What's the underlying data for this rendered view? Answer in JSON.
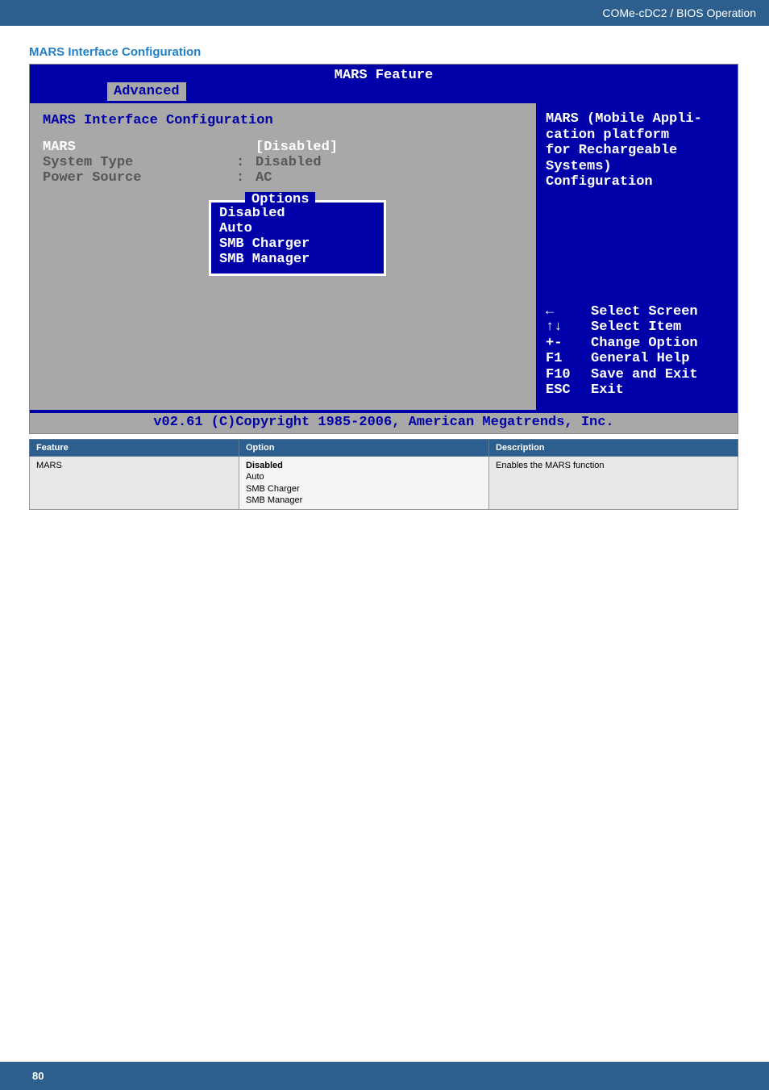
{
  "breadcrumb": "COMe-cDC2 / BIOS Operation",
  "section_title": "MARS Interface Configuration",
  "bios": {
    "title": "MARS Feature",
    "tab": "Advanced",
    "left_heading": "MARS Interface Configuration",
    "rows": [
      {
        "label": "MARS",
        "colon": "",
        "value": "[Disabled]",
        "selected": true
      },
      {
        "label": "System Type",
        "colon": ":",
        "value": "Disabled",
        "selected": false
      },
      {
        "label": "Power Source",
        "colon": ":",
        "value": "AC",
        "selected": false
      }
    ],
    "options_box": {
      "title": "Options",
      "items": [
        "Disabled",
        "Auto",
        "SMB Charger",
        "SMB Manager"
      ]
    },
    "help_top_lines": [
      "MARS (Mobile Appli-",
      "cation platform",
      "for Rechargeable",
      "Systems)",
      "Configuration"
    ],
    "help_keys": [
      {
        "k": "←",
        "t": "Select Screen"
      },
      {
        "k": "↑↓",
        "t": "Select Item"
      },
      {
        "k": "+-",
        "t": "Change Option"
      },
      {
        "k": "F1",
        "t": "General Help"
      },
      {
        "k": "F10",
        "t": "Save and Exit"
      },
      {
        "k": "ESC",
        "t": "Exit"
      }
    ],
    "copyright": "v02.61 (C)Copyright 1985-2006, American Megatrends, Inc."
  },
  "feature_table": {
    "headers": [
      "Feature",
      "Option",
      "Description"
    ],
    "rows": [
      {
        "feature": "MARS",
        "options": [
          "Disabled",
          "Auto",
          "SMB Charger",
          "SMB Manager"
        ],
        "bold_option_index": 0,
        "description": "Enables the MARS function"
      }
    ]
  },
  "page_number": "80",
  "colors": {
    "brand_bar": "#2c5f8d",
    "section_title": "#2281c6",
    "bios_blue": "#0000a8",
    "bios_grey": "#a8a8a8",
    "bios_dimtext": "#575757"
  }
}
